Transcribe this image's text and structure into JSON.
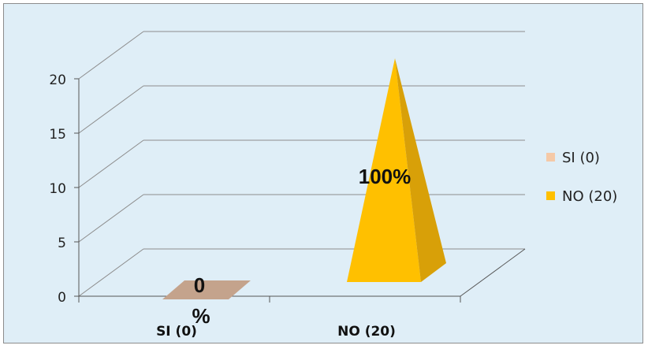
{
  "chart_data": {
    "type": "bar",
    "style": "3d-pyramid",
    "categories": [
      "SI (0)",
      "NO (20)"
    ],
    "values": [
      0,
      20
    ],
    "data_labels": [
      [
        "0",
        "%"
      ],
      [
        "100%"
      ]
    ],
    "ylim": [
      0,
      20
    ],
    "yticks": [
      "0",
      "5",
      "10",
      "15",
      "20"
    ],
    "legend": [
      {
        "name": "SI (0)",
        "color": "#f5c9a7"
      },
      {
        "name": "NO (20)",
        "color": "#ffc000"
      }
    ],
    "legend_position": "right",
    "grid": true,
    "colors": {
      "background": "#dfeef7",
      "zero_bar": "#c4a38c",
      "pyramid_front": "#ffc000",
      "pyramid_side": "#d8a008",
      "gridline": "#8c8c8c"
    }
  }
}
